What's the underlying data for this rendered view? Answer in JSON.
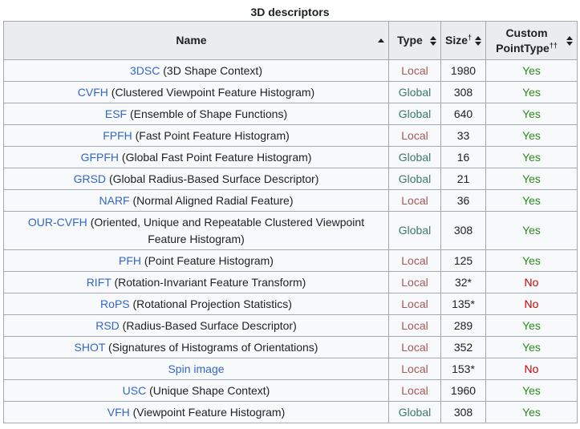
{
  "caption": "3D descriptors",
  "columns": {
    "name": "Name",
    "type": "Type",
    "size": "Size",
    "size_sup": "†",
    "custom_line1": "Custom",
    "custom_line2": "PointType",
    "custom_sup": "††"
  },
  "sort_icons": {
    "name": "sort-ascending-icon",
    "other": "sort-both-icon"
  },
  "colors": {
    "link": "#3366cc",
    "local": "#a55858",
    "global": "#3a7a6b",
    "yes": "#2c8a1f",
    "no": "#cc0000"
  },
  "rows": [
    {
      "abbr": "3DSC",
      "full": "(3D Shape Context)",
      "type": "Local",
      "size": "1980",
      "custom": "Yes"
    },
    {
      "abbr": "CVFH",
      "full": "(Clustered Viewpoint Feature Histogram)",
      "type": "Global",
      "size": "308",
      "custom": "Yes"
    },
    {
      "abbr": "ESF",
      "full": "(Ensemble of Shape Functions)",
      "type": "Global",
      "size": "640",
      "custom": "Yes"
    },
    {
      "abbr": "FPFH",
      "full": "(Fast Point Feature Histogram)",
      "type": "Local",
      "size": "33",
      "custom": "Yes"
    },
    {
      "abbr": "GFPFH",
      "full": "(Global Fast Point Feature Histogram)",
      "type": "Global",
      "size": "16",
      "custom": "Yes"
    },
    {
      "abbr": "GRSD",
      "full": "(Global Radius-Based Surface Descriptor)",
      "type": "Global",
      "size": "21",
      "custom": "Yes"
    },
    {
      "abbr": "NARF",
      "full": "(Normal Aligned Radial Feature)",
      "type": "Local",
      "size": "36",
      "custom": "Yes"
    },
    {
      "abbr": "OUR-CVFH",
      "full": "(Oriented, Unique and Repeatable Clustered Viewpoint Feature Histogram)",
      "type": "Global",
      "size": "308",
      "custom": "Yes"
    },
    {
      "abbr": "PFH",
      "full": "(Point Feature Histogram)",
      "type": "Local",
      "size": "125",
      "custom": "Yes"
    },
    {
      "abbr": "RIFT",
      "full": "(Rotation-Invariant Feature Transform)",
      "type": "Local",
      "size": "32*",
      "custom": "No"
    },
    {
      "abbr": "RoPS",
      "full": "(Rotational Projection Statistics)",
      "type": "Local",
      "size": "135*",
      "custom": "No"
    },
    {
      "abbr": "RSD",
      "full": "(Radius-Based Surface Descriptor)",
      "type": "Local",
      "size": "289",
      "custom": "Yes"
    },
    {
      "abbr": "SHOT",
      "full": "(Signatures of Histograms of Orientations)",
      "type": "Local",
      "size": "352",
      "custom": "Yes"
    },
    {
      "abbr": "Spin image",
      "full": "",
      "type": "Local",
      "size": "153*",
      "custom": "No"
    },
    {
      "abbr": "USC",
      "full": "(Unique Shape Context)",
      "type": "Local",
      "size": "1960",
      "custom": "Yes"
    },
    {
      "abbr": "VFH",
      "full": "(Viewpoint Feature Histogram)",
      "type": "Global",
      "size": "308",
      "custom": "Yes"
    }
  ]
}
